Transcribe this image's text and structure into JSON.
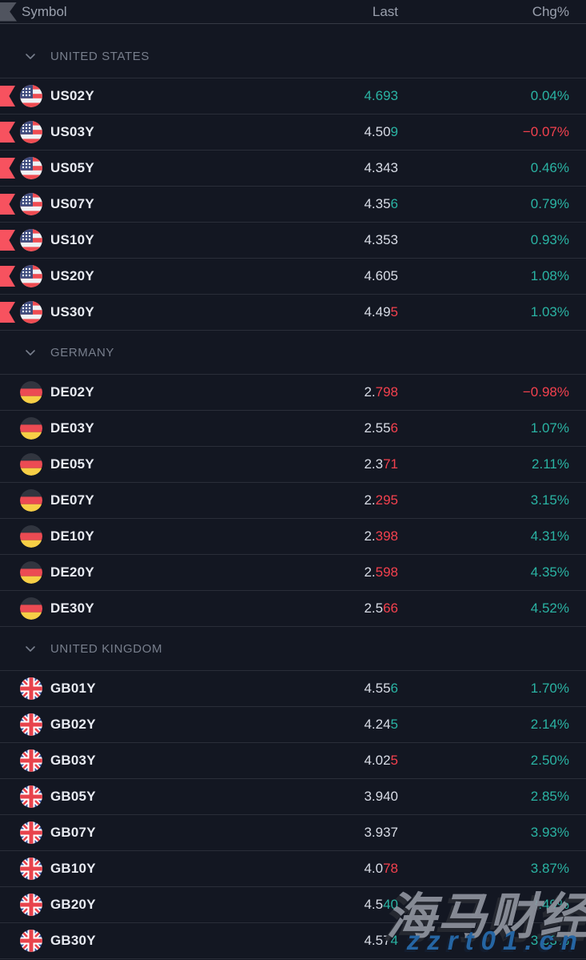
{
  "header": {
    "symbol": "Symbol",
    "last": "Last",
    "chg": "Chg%"
  },
  "colors": {
    "bg": "#131722",
    "row_border": "#2a2e39",
    "header_border": "#363a45",
    "up": "#2ab3a3",
    "down": "#f3414e",
    "flag_marker": "#f7525f"
  },
  "sections": [
    {
      "label": "UNITED STATES",
      "country": "us",
      "rows": [
        {
          "symbol": "US02Y",
          "flagged": true,
          "last_main": "",
          "last_tick": "4.693",
          "tick_dir": "up",
          "chg": "0.04%",
          "chg_dir": "up"
        },
        {
          "symbol": "US03Y",
          "flagged": true,
          "last_main": "4.50",
          "last_tick": "9",
          "tick_dir": "up",
          "chg": "−0.07%",
          "chg_dir": "down"
        },
        {
          "symbol": "US05Y",
          "flagged": true,
          "last_main": "4.343",
          "last_tick": "",
          "tick_dir": null,
          "chg": "0.46%",
          "chg_dir": "up"
        },
        {
          "symbol": "US07Y",
          "flagged": true,
          "last_main": "4.35",
          "last_tick": "6",
          "tick_dir": "up",
          "chg": "0.79%",
          "chg_dir": "up"
        },
        {
          "symbol": "US10Y",
          "flagged": true,
          "last_main": "4.353",
          "last_tick": "",
          "tick_dir": null,
          "chg": "0.93%",
          "chg_dir": "up"
        },
        {
          "symbol": "US20Y",
          "flagged": true,
          "last_main": "4.605",
          "last_tick": "",
          "tick_dir": null,
          "chg": "1.08%",
          "chg_dir": "up"
        },
        {
          "symbol": "US30Y",
          "flagged": true,
          "last_main": "4.49",
          "last_tick": "5",
          "tick_dir": "down",
          "chg": "1.03%",
          "chg_dir": "up"
        }
      ]
    },
    {
      "label": "GERMANY",
      "country": "de",
      "rows": [
        {
          "symbol": "DE02Y",
          "flagged": false,
          "last_main": "2.",
          "last_tick": "798",
          "tick_dir": "down",
          "chg": "−0.98%",
          "chg_dir": "down"
        },
        {
          "symbol": "DE03Y",
          "flagged": false,
          "last_main": "2.55",
          "last_tick": "6",
          "tick_dir": "down",
          "chg": "1.07%",
          "chg_dir": "up"
        },
        {
          "symbol": "DE05Y",
          "flagged": false,
          "last_main": "2.3",
          "last_tick": "71",
          "tick_dir": "down",
          "chg": "2.11%",
          "chg_dir": "up"
        },
        {
          "symbol": "DE07Y",
          "flagged": false,
          "last_main": "2.",
          "last_tick": "295",
          "tick_dir": "down",
          "chg": "3.15%",
          "chg_dir": "up"
        },
        {
          "symbol": "DE10Y",
          "flagged": false,
          "last_main": "2.",
          "last_tick": "398",
          "tick_dir": "down",
          "chg": "4.31%",
          "chg_dir": "up"
        },
        {
          "symbol": "DE20Y",
          "flagged": false,
          "last_main": "2.",
          "last_tick": "598",
          "tick_dir": "down",
          "chg": "4.35%",
          "chg_dir": "up"
        },
        {
          "symbol": "DE30Y",
          "flagged": false,
          "last_main": "2.5",
          "last_tick": "66",
          "tick_dir": "down",
          "chg": "4.52%",
          "chg_dir": "up"
        }
      ]
    },
    {
      "label": "UNITED KINGDOM",
      "country": "gb",
      "rows": [
        {
          "symbol": "GB01Y",
          "flagged": false,
          "last_main": "4.55",
          "last_tick": "6",
          "tick_dir": "up",
          "chg": "1.70%",
          "chg_dir": "up"
        },
        {
          "symbol": "GB02Y",
          "flagged": false,
          "last_main": "4.24",
          "last_tick": "5",
          "tick_dir": "up",
          "chg": "2.14%",
          "chg_dir": "up"
        },
        {
          "symbol": "GB03Y",
          "flagged": false,
          "last_main": "4.02",
          "last_tick": "5",
          "tick_dir": "down",
          "chg": "2.50%",
          "chg_dir": "up"
        },
        {
          "symbol": "GB05Y",
          "flagged": false,
          "last_main": "3.940",
          "last_tick": "",
          "tick_dir": null,
          "chg": "2.85%",
          "chg_dir": "up"
        },
        {
          "symbol": "GB07Y",
          "flagged": false,
          "last_main": "3.937",
          "last_tick": "",
          "tick_dir": null,
          "chg": "3.93%",
          "chg_dir": "up"
        },
        {
          "symbol": "GB10Y",
          "flagged": false,
          "last_main": "4.0",
          "last_tick": "78",
          "tick_dir": "down",
          "chg": "3.87%",
          "chg_dir": "up"
        },
        {
          "symbol": "GB20Y",
          "flagged": false,
          "last_main": "4.5",
          "last_tick": "40",
          "tick_dir": "up",
          "chg": "3.49%",
          "chg_dir": "up"
        },
        {
          "symbol": "GB30Y",
          "flagged": false,
          "last_main": "4.57",
          "last_tick": "4",
          "tick_dir": "up",
          "chg": "3.53%",
          "chg_dir": "up"
        }
      ]
    }
  ],
  "watermark": {
    "line1": "海马财经",
    "line2": "zzrt01.cn"
  }
}
